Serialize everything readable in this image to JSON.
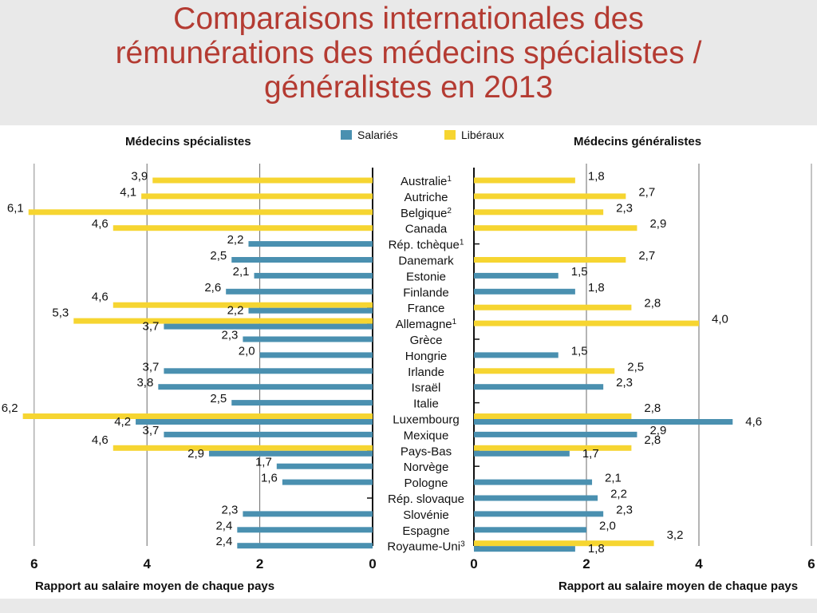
{
  "title_lines": [
    "Comparaisons internationales des",
    "rémunérations des médecins spécialistes /",
    "généralistes en 2013"
  ],
  "colors": {
    "salaries": "#4a90b0",
    "liberaux": "#f6d531",
    "title": "#b43b32"
  },
  "chart_data": {
    "type": "bar",
    "orientation": "horizontal",
    "left_panel_title": "Médecins spécialistes",
    "right_panel_title": "Médecins généralistes",
    "legend": [
      {
        "key": "salaries",
        "label": "Salariés"
      },
      {
        "key": "liberaux",
        "label": "Libéraux"
      }
    ],
    "legend_placement": "top-center",
    "xlabel": "Rapport au salaire moyen de chaque pays",
    "left_xticks": [
      "6",
      "4",
      "2",
      "0"
    ],
    "right_xticks": [
      "0",
      "2",
      "4",
      "6"
    ],
    "xlim": [
      0,
      6
    ],
    "grid": true,
    "countries": [
      {
        "name": "Australie",
        "sup": "1",
        "specialistes": {
          "liberaux": 3.9,
          "salaries": null
        },
        "generalistes": {
          "liberaux": 1.8,
          "salaries": null
        }
      },
      {
        "name": "Autriche",
        "sup": "",
        "specialistes": {
          "liberaux": 4.1,
          "salaries": null
        },
        "generalistes": {
          "liberaux": 2.7,
          "salaries": null
        }
      },
      {
        "name": "Belgique",
        "sup": "2",
        "specialistes": {
          "liberaux": 6.1,
          "salaries": null
        },
        "generalistes": {
          "liberaux": 2.3,
          "salaries": null
        }
      },
      {
        "name": "Canada",
        "sup": "",
        "specialistes": {
          "liberaux": 4.6,
          "salaries": null
        },
        "generalistes": {
          "liberaux": 2.9,
          "salaries": null
        }
      },
      {
        "name": "Rép. tchèque",
        "sup": "1",
        "specialistes": {
          "liberaux": null,
          "salaries": 2.2
        },
        "generalistes": {
          "liberaux": null,
          "salaries": null
        }
      },
      {
        "name": "Danemark",
        "sup": "",
        "specialistes": {
          "liberaux": null,
          "salaries": 2.5
        },
        "generalistes": {
          "liberaux": 2.7,
          "salaries": null
        }
      },
      {
        "name": "Estonie",
        "sup": "",
        "specialistes": {
          "liberaux": null,
          "salaries": 2.1
        },
        "generalistes": {
          "liberaux": null,
          "salaries": 1.5
        }
      },
      {
        "name": "Finlande",
        "sup": "",
        "specialistes": {
          "liberaux": null,
          "salaries": 2.6
        },
        "generalistes": {
          "liberaux": null,
          "salaries": 1.8
        }
      },
      {
        "name": "France",
        "sup": "",
        "specialistes": {
          "liberaux": 4.6,
          "salaries": 2.2
        },
        "generalistes": {
          "liberaux": 2.8,
          "salaries": null
        }
      },
      {
        "name": "Allemagne",
        "sup": "1",
        "specialistes": {
          "liberaux": 5.3,
          "salaries": 3.7
        },
        "generalistes": {
          "liberaux": 4.0,
          "salaries": null
        }
      },
      {
        "name": "Grèce",
        "sup": "",
        "specialistes": {
          "liberaux": null,
          "salaries": 2.3
        },
        "generalistes": {
          "liberaux": null,
          "salaries": null
        }
      },
      {
        "name": "Hongrie",
        "sup": "",
        "specialistes": {
          "liberaux": null,
          "salaries": 2.0
        },
        "generalistes": {
          "liberaux": null,
          "salaries": 1.5
        }
      },
      {
        "name": "Irlande",
        "sup": "",
        "specialistes": {
          "liberaux": null,
          "salaries": 3.7
        },
        "generalistes": {
          "liberaux": 2.5,
          "salaries": null
        }
      },
      {
        "name": "Israël",
        "sup": "",
        "specialistes": {
          "liberaux": null,
          "salaries": 3.8
        },
        "generalistes": {
          "liberaux": null,
          "salaries": 2.3
        }
      },
      {
        "name": "Italie",
        "sup": "",
        "specialistes": {
          "liberaux": null,
          "salaries": 2.5
        },
        "generalistes": {
          "liberaux": null,
          "salaries": null
        }
      },
      {
        "name": "Luxembourg",
        "sup": "",
        "specialistes": {
          "liberaux": 6.2,
          "salaries": 4.2
        },
        "generalistes": {
          "liberaux": 2.8,
          "salaries": 4.6
        }
      },
      {
        "name": "Mexique",
        "sup": "",
        "specialistes": {
          "liberaux": null,
          "salaries": 3.7
        },
        "generalistes": {
          "liberaux": null,
          "salaries": 2.9
        }
      },
      {
        "name": "Pays-Bas",
        "sup": "",
        "specialistes": {
          "liberaux": 4.6,
          "salaries": 2.9
        },
        "generalistes": {
          "liberaux": 2.8,
          "salaries": 1.7
        }
      },
      {
        "name": "Norvège",
        "sup": "",
        "specialistes": {
          "liberaux": null,
          "salaries": 1.7
        },
        "generalistes": {
          "liberaux": null,
          "salaries": null
        }
      },
      {
        "name": "Pologne",
        "sup": "",
        "specialistes": {
          "liberaux": null,
          "salaries": 1.6
        },
        "generalistes": {
          "liberaux": null,
          "salaries": 2.1
        }
      },
      {
        "name": "Rép. slovaque",
        "sup": "",
        "specialistes": {
          "liberaux": null,
          "salaries": null
        },
        "generalistes": {
          "liberaux": null,
          "salaries": 2.2
        }
      },
      {
        "name": "Slovénie",
        "sup": "",
        "specialistes": {
          "liberaux": null,
          "salaries": 2.3
        },
        "generalistes": {
          "liberaux": null,
          "salaries": 2.3
        }
      },
      {
        "name": "Espagne",
        "sup": "",
        "specialistes": {
          "liberaux": null,
          "salaries": 2.4
        },
        "generalistes": {
          "liberaux": null,
          "salaries": 2.0
        }
      },
      {
        "name": "Royaume-Uni",
        "sup": "3",
        "specialistes": {
          "liberaux": null,
          "salaries": 2.4
        },
        "generalistes": {
          "liberaux": 3.2,
          "salaries": 1.8
        }
      }
    ]
  }
}
